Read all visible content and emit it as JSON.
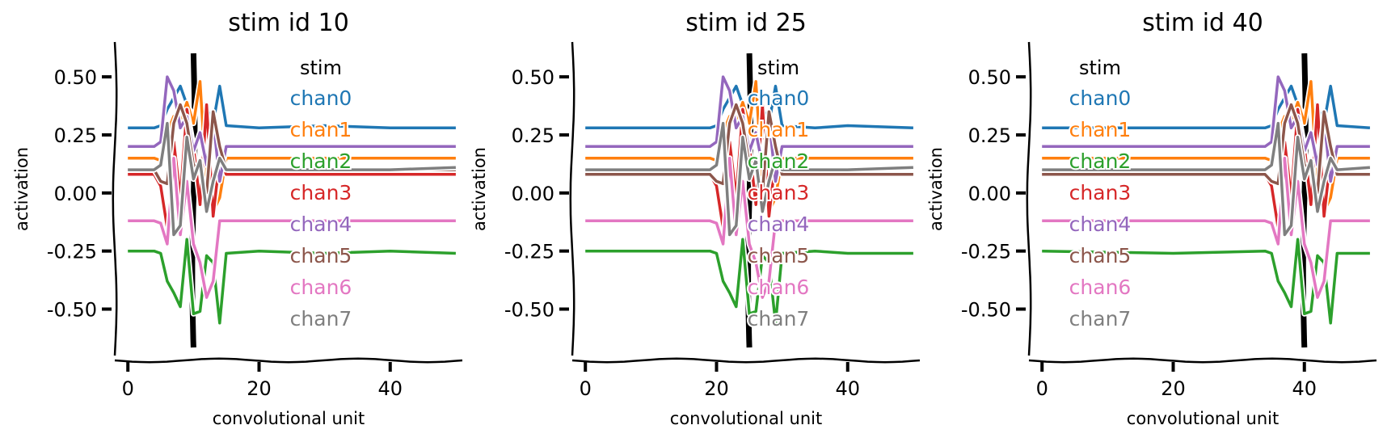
{
  "chart_data": [
    {
      "type": "line",
      "title": "stim id 10",
      "stim_x": 10,
      "xlabel": "convolutional unit",
      "ylabel": "activation",
      "xlim": [
        -2,
        51
      ],
      "ylim": [
        -0.7,
        0.65
      ],
      "xticks": [
        "0",
        "20",
        "40"
      ],
      "yticks": [
        "0.50",
        "0.25",
        "0.00",
        "-0.25",
        "-0.50"
      ],
      "legend": {
        "title": "stim",
        "position": "top-right"
      },
      "series": [
        {
          "name": "chan0",
          "color": "#1f77b4",
          "x": [
            0,
            4,
            5,
            6,
            7,
            8,
            9,
            10,
            11,
            12,
            13,
            14,
            15,
            20,
            30,
            40,
            50
          ],
          "y": [
            0.28,
            0.28,
            0.29,
            0.36,
            0.41,
            0.46,
            0.38,
            0.33,
            0.4,
            0.37,
            0.3,
            0.46,
            0.29,
            0.28,
            0.29,
            0.28,
            0.28
          ]
        },
        {
          "name": "chan1",
          "color": "#ff7f0e",
          "x": [
            0,
            4,
            5,
            6,
            7,
            8,
            9,
            10,
            11,
            12,
            13,
            14,
            15,
            20,
            30,
            40,
            50
          ],
          "y": [
            0.15,
            0.15,
            0.14,
            0.26,
            0.33,
            0.31,
            0.39,
            0.3,
            0.48,
            0.02,
            -0.08,
            -0.02,
            0.15,
            0.15,
            0.15,
            0.15,
            0.15
          ]
        },
        {
          "name": "chan2",
          "color": "#2ca02c",
          "x": [
            0,
            4,
            5,
            6,
            7,
            8,
            9,
            10,
            11,
            12,
            13,
            14,
            15,
            20,
            30,
            40,
            50
          ],
          "y": [
            -0.25,
            -0.25,
            -0.26,
            -0.38,
            -0.43,
            -0.49,
            -0.2,
            -0.52,
            -0.51,
            -0.27,
            -0.3,
            -0.56,
            -0.26,
            -0.25,
            -0.26,
            -0.25,
            -0.26
          ]
        },
        {
          "name": "chan3",
          "color": "#d62728",
          "x": [
            0,
            4,
            5,
            6,
            7,
            8,
            9,
            10,
            11,
            12,
            13,
            14,
            15,
            20,
            30,
            40,
            50
          ],
          "y": [
            0.08,
            0.08,
            0.03,
            -0.15,
            0.22,
            -0.02,
            0.36,
            0.2,
            -0.05,
            0.38,
            -0.1,
            0.15,
            0.08,
            0.08,
            0.08,
            0.08,
            0.08
          ]
        },
        {
          "name": "chan4",
          "color": "#9467bd",
          "x": [
            0,
            4,
            5,
            6,
            7,
            8,
            9,
            10,
            11,
            12,
            13,
            14,
            15,
            20,
            30,
            40,
            50
          ],
          "y": [
            0.2,
            0.2,
            0.22,
            0.5,
            0.44,
            0.28,
            0.33,
            0.18,
            0.26,
            0.12,
            0.32,
            0.05,
            0.2,
            0.2,
            0.2,
            0.2,
            0.2
          ]
        },
        {
          "name": "chan5",
          "color": "#8c564b",
          "x": [
            0,
            4,
            5,
            6,
            7,
            8,
            9,
            10,
            11,
            12,
            13,
            14,
            15,
            20,
            30,
            40,
            50
          ],
          "y": [
            0.1,
            0.1,
            0.05,
            0.04,
            0.3,
            0.38,
            0.3,
            0.12,
            0.1,
            0.0,
            0.35,
            0.2,
            0.1,
            0.1,
            0.1,
            0.1,
            0.1
          ]
        },
        {
          "name": "chan6",
          "color": "#e377c2",
          "x": [
            0,
            4,
            5,
            6,
            7,
            8,
            9,
            10,
            11,
            12,
            13,
            14,
            15,
            20,
            30,
            40,
            50
          ],
          "y": [
            -0.12,
            -0.12,
            -0.13,
            -0.22,
            0.15,
            -0.18,
            0.05,
            -0.22,
            -0.3,
            -0.45,
            -0.38,
            -0.12,
            -0.12,
            -0.12,
            -0.12,
            -0.12,
            -0.12
          ]
        },
        {
          "name": "chan7",
          "color": "#7f7f7f",
          "x": [
            0,
            4,
            5,
            6,
            7,
            8,
            9,
            10,
            11,
            12,
            13,
            14,
            15,
            20,
            30,
            40,
            50
          ],
          "y": [
            0.1,
            0.1,
            0.12,
            0.3,
            -0.18,
            -0.14,
            0.24,
            0.06,
            0.14,
            -0.08,
            0.05,
            0.15,
            0.1,
            0.1,
            0.1,
            0.1,
            0.11
          ]
        }
      ]
    },
    {
      "type": "line",
      "title": "stim id 25",
      "stim_x": 25,
      "xlabel": "convolutional unit",
      "ylabel": "activation",
      "xlim": [
        -2,
        51
      ],
      "ylim": [
        -0.7,
        0.65
      ],
      "xticks": [
        "0",
        "20",
        "40"
      ],
      "yticks": [
        "0.50",
        "0.25",
        "0.00",
        "-0.25",
        "-0.50"
      ],
      "legend": {
        "title": "stim",
        "position": "top-right"
      },
      "series": [
        {
          "name": "chan0",
          "color": "#1f77b4",
          "x": [
            0,
            19,
            20,
            21,
            22,
            23,
            24,
            25,
            26,
            27,
            28,
            29,
            30,
            35,
            40,
            50
          ],
          "y": [
            0.28,
            0.28,
            0.29,
            0.36,
            0.41,
            0.46,
            0.38,
            0.33,
            0.4,
            0.37,
            0.3,
            0.46,
            0.29,
            0.28,
            0.29,
            0.28
          ]
        },
        {
          "name": "chan1",
          "color": "#ff7f0e",
          "x": [
            0,
            19,
            20,
            21,
            22,
            23,
            24,
            25,
            26,
            27,
            28,
            29,
            30,
            35,
            40,
            50
          ],
          "y": [
            0.15,
            0.15,
            0.14,
            0.26,
            0.33,
            0.31,
            0.39,
            0.3,
            0.48,
            0.02,
            -0.08,
            -0.02,
            0.15,
            0.15,
            0.15,
            0.15
          ]
        },
        {
          "name": "chan2",
          "color": "#2ca02c",
          "x": [
            0,
            19,
            20,
            21,
            22,
            23,
            24,
            25,
            26,
            27,
            28,
            29,
            30,
            35,
            40,
            50
          ],
          "y": [
            -0.25,
            -0.25,
            -0.26,
            -0.38,
            -0.43,
            -0.49,
            -0.2,
            -0.52,
            -0.51,
            -0.27,
            -0.3,
            -0.56,
            -0.26,
            -0.25,
            -0.26,
            -0.26
          ]
        },
        {
          "name": "chan3",
          "color": "#d62728",
          "x": [
            0,
            19,
            20,
            21,
            22,
            23,
            24,
            25,
            26,
            27,
            28,
            29,
            30,
            35,
            40,
            50
          ],
          "y": [
            0.08,
            0.08,
            0.03,
            -0.15,
            0.22,
            -0.02,
            0.36,
            0.2,
            -0.05,
            0.38,
            -0.1,
            0.15,
            0.08,
            0.08,
            0.08,
            0.08
          ]
        },
        {
          "name": "chan4",
          "color": "#9467bd",
          "x": [
            0,
            19,
            20,
            21,
            22,
            23,
            24,
            25,
            26,
            27,
            28,
            29,
            30,
            35,
            40,
            50
          ],
          "y": [
            0.2,
            0.2,
            0.22,
            0.5,
            0.44,
            0.28,
            0.33,
            0.18,
            0.26,
            0.12,
            0.32,
            0.05,
            0.2,
            0.2,
            0.2,
            0.2
          ]
        },
        {
          "name": "chan5",
          "color": "#8c564b",
          "x": [
            0,
            19,
            20,
            21,
            22,
            23,
            24,
            25,
            26,
            27,
            28,
            29,
            30,
            35,
            40,
            50
          ],
          "y": [
            0.08,
            0.08,
            0.05,
            0.04,
            0.3,
            0.38,
            0.3,
            0.12,
            0.1,
            0.0,
            0.35,
            0.2,
            0.08,
            0.08,
            0.08,
            0.08
          ]
        },
        {
          "name": "chan6",
          "color": "#e377c2",
          "x": [
            0,
            19,
            20,
            21,
            22,
            23,
            24,
            25,
            26,
            27,
            28,
            29,
            30,
            35,
            40,
            50
          ],
          "y": [
            -0.12,
            -0.12,
            -0.13,
            -0.22,
            0.15,
            -0.18,
            0.05,
            -0.22,
            -0.3,
            -0.45,
            -0.38,
            -0.12,
            -0.12,
            -0.12,
            -0.12,
            -0.12
          ]
        },
        {
          "name": "chan7",
          "color": "#7f7f7f",
          "x": [
            0,
            19,
            20,
            21,
            22,
            23,
            24,
            25,
            26,
            27,
            28,
            29,
            30,
            35,
            40,
            50
          ],
          "y": [
            0.1,
            0.1,
            0.12,
            0.3,
            -0.18,
            -0.14,
            0.24,
            0.06,
            0.14,
            -0.08,
            0.05,
            0.15,
            0.1,
            0.1,
            0.1,
            0.11
          ]
        }
      ]
    },
    {
      "type": "line",
      "title": "stim id 40",
      "stim_x": 40,
      "xlabel": "convolutional unit",
      "ylabel": "activation",
      "xlim": [
        -2,
        51
      ],
      "ylim": [
        -0.7,
        0.65
      ],
      "xticks": [
        "0",
        "20",
        "40"
      ],
      "yticks": [
        "0.50",
        "0.25",
        "0.00",
        "-0.25",
        "-0.50"
      ],
      "legend": {
        "title": "stim",
        "position": "top-left"
      },
      "series": [
        {
          "name": "chan0",
          "color": "#1f77b4",
          "x": [
            0,
            20,
            34,
            35,
            36,
            37,
            38,
            39,
            40,
            41,
            42,
            43,
            44,
            45,
            50
          ],
          "y": [
            0.28,
            0.28,
            0.28,
            0.29,
            0.36,
            0.41,
            0.46,
            0.38,
            0.33,
            0.4,
            0.37,
            0.3,
            0.46,
            0.29,
            0.28
          ]
        },
        {
          "name": "chan1",
          "color": "#ff7f0e",
          "x": [
            0,
            20,
            34,
            35,
            36,
            37,
            38,
            39,
            40,
            41,
            42,
            43,
            44,
            45,
            50
          ],
          "y": [
            0.15,
            0.15,
            0.15,
            0.14,
            0.26,
            0.33,
            0.31,
            0.39,
            0.3,
            0.48,
            0.02,
            -0.08,
            -0.02,
            0.15,
            0.15
          ]
        },
        {
          "name": "chan2",
          "color": "#2ca02c",
          "x": [
            0,
            20,
            34,
            35,
            36,
            37,
            38,
            39,
            40,
            41,
            42,
            43,
            44,
            45,
            50
          ],
          "y": [
            -0.25,
            -0.26,
            -0.25,
            -0.26,
            -0.38,
            -0.43,
            -0.49,
            -0.2,
            -0.52,
            -0.51,
            -0.27,
            -0.3,
            -0.56,
            -0.26,
            -0.26
          ]
        },
        {
          "name": "chan3",
          "color": "#d62728",
          "x": [
            0,
            20,
            34,
            35,
            36,
            37,
            38,
            39,
            40,
            41,
            42,
            43,
            44,
            45,
            50
          ],
          "y": [
            0.08,
            0.08,
            0.08,
            0.03,
            -0.15,
            0.22,
            -0.02,
            0.36,
            0.2,
            -0.05,
            0.38,
            -0.1,
            0.15,
            0.08,
            0.08
          ]
        },
        {
          "name": "chan4",
          "color": "#9467bd",
          "x": [
            0,
            20,
            34,
            35,
            36,
            37,
            38,
            39,
            40,
            41,
            42,
            43,
            44,
            45,
            50
          ],
          "y": [
            0.2,
            0.2,
            0.2,
            0.22,
            0.5,
            0.44,
            0.28,
            0.33,
            0.18,
            0.26,
            0.12,
            0.32,
            0.05,
            0.2,
            0.2
          ]
        },
        {
          "name": "chan5",
          "color": "#8c564b",
          "x": [
            0,
            20,
            34,
            35,
            36,
            37,
            38,
            39,
            40,
            41,
            42,
            43,
            44,
            45,
            50
          ],
          "y": [
            0.08,
            0.08,
            0.08,
            0.05,
            0.04,
            0.3,
            0.38,
            0.3,
            0.12,
            0.1,
            0.0,
            0.35,
            0.2,
            0.08,
            0.08
          ]
        },
        {
          "name": "chan6",
          "color": "#e377c2",
          "x": [
            0,
            20,
            34,
            35,
            36,
            37,
            38,
            39,
            40,
            41,
            42,
            43,
            44,
            45,
            50
          ],
          "y": [
            -0.12,
            -0.12,
            -0.12,
            -0.13,
            -0.22,
            0.15,
            -0.18,
            0.05,
            -0.22,
            -0.3,
            -0.45,
            -0.38,
            -0.12,
            -0.12,
            -0.12
          ]
        },
        {
          "name": "chan7",
          "color": "#7f7f7f",
          "x": [
            0,
            20,
            34,
            35,
            36,
            37,
            38,
            39,
            40,
            41,
            42,
            43,
            44,
            45,
            50
          ],
          "y": [
            0.1,
            0.1,
            0.1,
            0.12,
            0.3,
            -0.18,
            -0.14,
            0.24,
            0.06,
            0.14,
            -0.08,
            0.05,
            0.15,
            0.1,
            0.11
          ]
        }
      ]
    }
  ]
}
